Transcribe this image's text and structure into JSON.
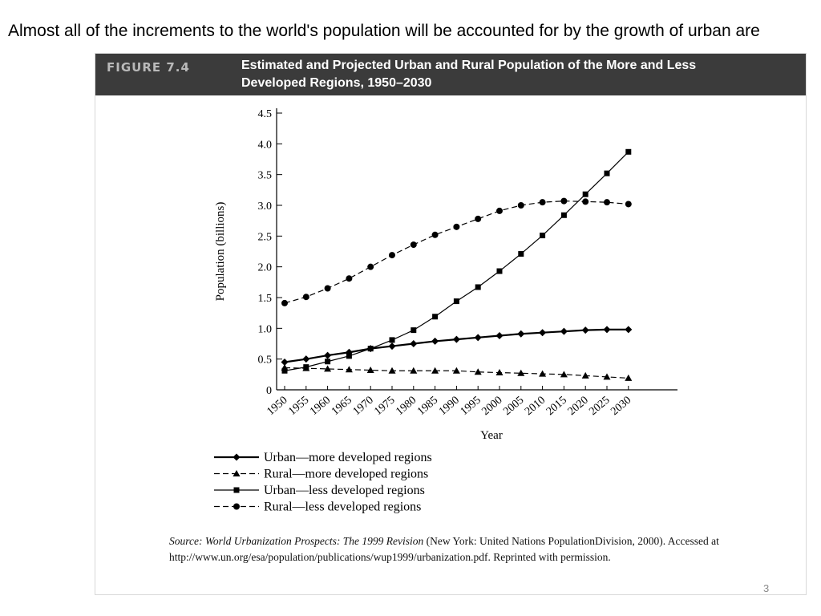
{
  "slide": {
    "text": "Almost all of the increments to the world's population will be accounted for by the growth of urban are",
    "page_number": "3"
  },
  "figure": {
    "label": "FIGURE 7.4",
    "title": "Estimated and Projected Urban and Rural Population of the More and Less Developed Regions, 1950–2030",
    "source_italic": "Source: World Urbanization Prospects: The 1999 Revision",
    "source_rest": " (New York: United Nations PopulationDivision, 2000). Accessed at http://www.un.org/esa/population/publications/wup1999/urbanization.pdf. Reprinted with permission."
  },
  "chart_data": {
    "type": "line",
    "title": "Estimated and Projected Urban and Rural Population of the More and Less Developed Regions, 1950–2030",
    "xlabel": "Year",
    "ylabel": "Population (billions)",
    "ylim": [
      0,
      4.5
    ],
    "yticks": [
      "0",
      "0.5",
      "1.0",
      "1.5",
      "2.0",
      "2.5",
      "3.0",
      "3.5",
      "4.0",
      "4.5"
    ],
    "x": [
      "1950",
      "1955",
      "1960",
      "1965",
      "1970",
      "1975",
      "1980",
      "1985",
      "1990",
      "1995",
      "2000",
      "2005",
      "2010",
      "2015",
      "2020",
      "2025",
      "2030"
    ],
    "grid": false,
    "legend_position": "bottom-left",
    "series": [
      {
        "name": "Urban—more developed regions",
        "marker": "diamond",
        "line": "solid-thick",
        "values": [
          0.45,
          0.5,
          0.56,
          0.61,
          0.67,
          0.71,
          0.75,
          0.79,
          0.82,
          0.85,
          0.88,
          0.91,
          0.93,
          0.95,
          0.97,
          0.98,
          0.98
        ]
      },
      {
        "name": "Rural—more developed regions",
        "marker": "triangle",
        "line": "dashed",
        "values": [
          0.36,
          0.35,
          0.34,
          0.33,
          0.32,
          0.31,
          0.31,
          0.31,
          0.31,
          0.29,
          0.28,
          0.27,
          0.26,
          0.25,
          0.23,
          0.21,
          0.19
        ]
      },
      {
        "name": "Urban—less developed regions",
        "marker": "square",
        "line": "solid",
        "values": [
          0.31,
          0.37,
          0.46,
          0.55,
          0.67,
          0.81,
          0.97,
          1.19,
          1.44,
          1.67,
          1.93,
          2.21,
          2.51,
          2.84,
          3.18,
          3.52,
          3.87
        ]
      },
      {
        "name": "Rural—less developed regions",
        "marker": "circle",
        "line": "dashed",
        "values": [
          1.41,
          1.51,
          1.65,
          1.81,
          2.0,
          2.19,
          2.36,
          2.52,
          2.65,
          2.78,
          2.91,
          3.0,
          3.05,
          3.07,
          3.06,
          3.05,
          3.02
        ]
      }
    ]
  }
}
